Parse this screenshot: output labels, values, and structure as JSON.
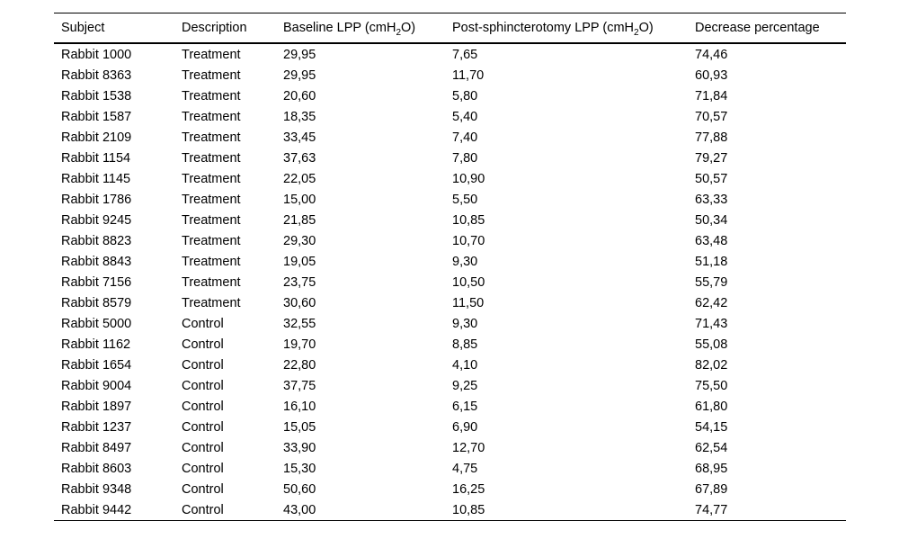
{
  "page": {
    "background_color": "#ffffff",
    "text_color": "#000000",
    "rule_color": "#000000"
  },
  "table": {
    "columns": [
      {
        "pre": "Subject",
        "sub": "",
        "post": ""
      },
      {
        "pre": "Description",
        "sub": "",
        "post": ""
      },
      {
        "pre": "Baseline LPP (cmH",
        "sub": "2",
        "post": "O)"
      },
      {
        "pre": "Post-sphincterotomy LPP (cmH",
        "sub": "2",
        "post": "O)"
      },
      {
        "pre": "Decrease percentage",
        "sub": "",
        "post": ""
      }
    ],
    "rows": [
      [
        "Rabbit 1000",
        "Treatment",
        "29,95",
        "7,65",
        "74,46"
      ],
      [
        "Rabbit 8363",
        "Treatment",
        "29,95",
        "11,70",
        "60,93"
      ],
      [
        "Rabbit 1538",
        "Treatment",
        "20,60",
        "5,80",
        "71,84"
      ],
      [
        "Rabbit 1587",
        "Treatment",
        "18,35",
        "5,40",
        "70,57"
      ],
      [
        "Rabbit 2109",
        "Treatment",
        "33,45",
        "7,40",
        "77,88"
      ],
      [
        "Rabbit 1154",
        "Treatment",
        "37,63",
        "7,80",
        "79,27"
      ],
      [
        "Rabbit 1145",
        "Treatment",
        "22,05",
        "10,90",
        "50,57"
      ],
      [
        "Rabbit 1786",
        "Treatment",
        "15,00",
        "5,50",
        "63,33"
      ],
      [
        "Rabbit 9245",
        "Treatment",
        "21,85",
        "10,85",
        "50,34"
      ],
      [
        "Rabbit 8823",
        "Treatment",
        "29,30",
        "10,70",
        "63,48"
      ],
      [
        "Rabbit 8843",
        "Treatment",
        "19,05",
        "9,30",
        "51,18"
      ],
      [
        "Rabbit 7156",
        "Treatment",
        "23,75",
        "10,50",
        "55,79"
      ],
      [
        "Rabbit 8579",
        "Treatment",
        "30,60",
        "11,50",
        "62,42"
      ],
      [
        "Rabbit 5000",
        "Control",
        "32,55",
        "9,30",
        "71,43"
      ],
      [
        "Rabbit 1162",
        "Control",
        "19,70",
        "8,85",
        "55,08"
      ],
      [
        "Rabbit 1654",
        "Control",
        "22,80",
        "4,10",
        "82,02"
      ],
      [
        "Rabbit 9004",
        "Control",
        "37,75",
        "9,25",
        "75,50"
      ],
      [
        "Rabbit 1897",
        "Control",
        "16,10",
        "6,15",
        "61,80"
      ],
      [
        "Rabbit 1237",
        "Control",
        "15,05",
        "6,90",
        "54,15"
      ],
      [
        "Rabbit 8497",
        "Control",
        "33,90",
        "12,70",
        "62,54"
      ],
      [
        "Rabbit 8603",
        "Control",
        "15,30",
        "4,75",
        "68,95"
      ],
      [
        "Rabbit 9348",
        "Control",
        "50,60",
        "16,25",
        "67,89"
      ],
      [
        "Rabbit 9442",
        "Control",
        "43,00",
        "10,85",
        "74,77"
      ]
    ]
  },
  "chart_data": {
    "type": "table",
    "title": "",
    "columns": [
      "Subject",
      "Description",
      "Baseline LPP (cmH2O)",
      "Post-sphincterotomy LPP (cmH2O)",
      "Decrease percentage"
    ],
    "rows": [
      [
        "Rabbit 1000",
        "Treatment",
        29.95,
        7.65,
        74.46
      ],
      [
        "Rabbit 8363",
        "Treatment",
        29.95,
        11.7,
        60.93
      ],
      [
        "Rabbit 1538",
        "Treatment",
        20.6,
        5.8,
        71.84
      ],
      [
        "Rabbit 1587",
        "Treatment",
        18.35,
        5.4,
        70.57
      ],
      [
        "Rabbit 2109",
        "Treatment",
        33.45,
        7.4,
        77.88
      ],
      [
        "Rabbit 1154",
        "Treatment",
        37.63,
        7.8,
        79.27
      ],
      [
        "Rabbit 1145",
        "Treatment",
        22.05,
        10.9,
        50.57
      ],
      [
        "Rabbit 1786",
        "Treatment",
        15.0,
        5.5,
        63.33
      ],
      [
        "Rabbit 9245",
        "Treatment",
        21.85,
        10.85,
        50.34
      ],
      [
        "Rabbit 8823",
        "Treatment",
        29.3,
        10.7,
        63.48
      ],
      [
        "Rabbit 8843",
        "Treatment",
        19.05,
        9.3,
        51.18
      ],
      [
        "Rabbit 7156",
        "Treatment",
        23.75,
        10.5,
        55.79
      ],
      [
        "Rabbit 8579",
        "Treatment",
        30.6,
        11.5,
        62.42
      ],
      [
        "Rabbit 5000",
        "Control",
        32.55,
        9.3,
        71.43
      ],
      [
        "Rabbit 1162",
        "Control",
        19.7,
        8.85,
        55.08
      ],
      [
        "Rabbit 1654",
        "Control",
        22.8,
        4.1,
        82.02
      ],
      [
        "Rabbit 9004",
        "Control",
        37.75,
        9.25,
        75.5
      ],
      [
        "Rabbit 1897",
        "Control",
        16.1,
        6.15,
        61.8
      ],
      [
        "Rabbit 1237",
        "Control",
        15.05,
        6.9,
        54.15
      ],
      [
        "Rabbit 8497",
        "Control",
        33.9,
        12.7,
        62.54
      ],
      [
        "Rabbit 8603",
        "Control",
        15.3,
        4.75,
        68.95
      ],
      [
        "Rabbit 9348",
        "Control",
        50.6,
        16.25,
        67.89
      ],
      [
        "Rabbit 9442",
        "Control",
        43.0,
        10.85,
        74.77
      ]
    ]
  }
}
